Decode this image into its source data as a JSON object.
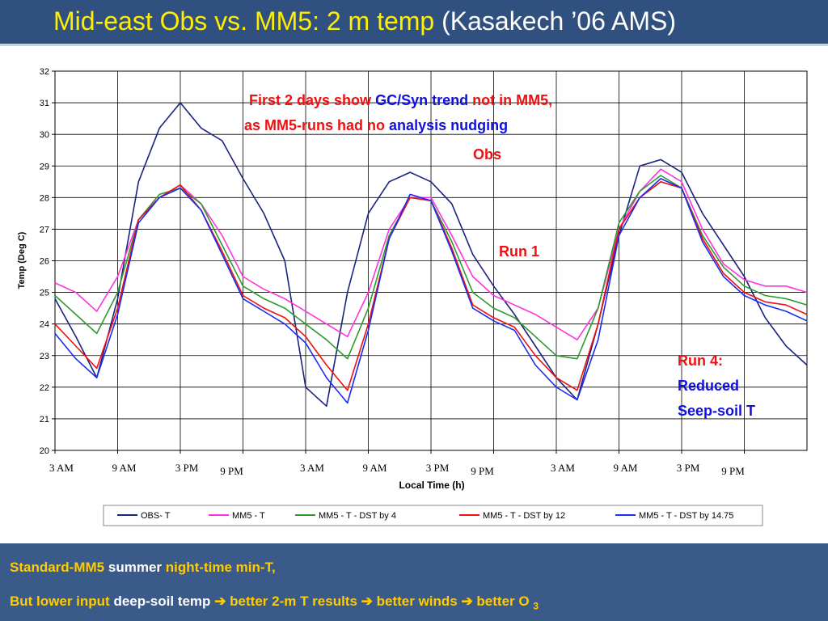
{
  "title": {
    "main": "Mid-east Obs vs. MM5: 2 m temp",
    "sub": "(Kasakech ’06 AMS)"
  },
  "chart_data": {
    "type": "line",
    "ylabel": "Temp (Deg C)",
    "xlabel": "Local Time (h)",
    "x": [
      0,
      2,
      4,
      6,
      8,
      10,
      12,
      14,
      16,
      18,
      20,
      22,
      24,
      26,
      28,
      30,
      32,
      34,
      36,
      38,
      40,
      42,
      44,
      46,
      48,
      50,
      52,
      54,
      56,
      58,
      60,
      62,
      64,
      66,
      68,
      70,
      72
    ],
    "xlim": [
      0,
      72
    ],
    "xticks": [
      {
        "value": 0,
        "label": "3 AM"
      },
      {
        "value": 6,
        "label": "9 AM"
      },
      {
        "value": 12,
        "label": "3 PM"
      },
      {
        "value": 18,
        "label": "9 PM"
      },
      {
        "value": 24,
        "label": "3 AM"
      },
      {
        "value": 30,
        "label": "9 AM"
      },
      {
        "value": 36,
        "label": "3 PM"
      },
      {
        "value": 42,
        "label": "9 PM"
      },
      {
        "value": 48,
        "label": "3 AM"
      },
      {
        "value": 54,
        "label": "9 AM"
      },
      {
        "value": 60,
        "label": "3 PM"
      },
      {
        "value": 66,
        "label": "9 PM"
      }
    ],
    "ylim": [
      20,
      32
    ],
    "yticks": [
      20,
      21,
      22,
      23,
      24,
      25,
      26,
      27,
      28,
      29,
      30,
      31,
      32
    ],
    "grid": true,
    "series": [
      {
        "name": "OBS- T",
        "color": "#1a237e",
        "values": [
          24.8,
          23.6,
          22.3,
          24.8,
          28.5,
          30.2,
          31.0,
          30.2,
          29.8,
          28.6,
          27.5,
          26.0,
          22.0,
          21.4,
          25.0,
          27.5,
          28.5,
          28.8,
          28.5,
          27.8,
          26.2,
          25.2,
          24.3,
          23.3,
          22.3,
          21.6,
          24.0,
          26.8,
          29.0,
          29.2,
          28.8,
          27.5,
          26.5,
          25.5,
          24.2,
          23.3,
          22.7
        ]
      },
      {
        "name": "MM5 - T",
        "color": "#ff33dd",
        "values": [
          25.3,
          25.0,
          24.4,
          25.5,
          27.3,
          28.0,
          28.4,
          27.8,
          26.8,
          25.5,
          25.1,
          24.8,
          24.4,
          24.0,
          23.6,
          25.0,
          27.0,
          28.0,
          28.0,
          26.8,
          25.5,
          24.9,
          24.6,
          24.3,
          23.9,
          23.5,
          24.5,
          27.0,
          28.2,
          28.9,
          28.5,
          27.0,
          25.9,
          25.4,
          25.2,
          25.2,
          25.0
        ]
      },
      {
        "name": "MM5 - T - DST by 4",
        "color": "#2e9a2e",
        "values": [
          24.9,
          24.3,
          23.7,
          25.0,
          27.3,
          28.1,
          28.3,
          27.8,
          26.5,
          25.2,
          24.8,
          24.5,
          24.0,
          23.5,
          22.9,
          24.5,
          26.8,
          28.0,
          27.9,
          26.6,
          25.0,
          24.5,
          24.2,
          23.6,
          23.0,
          22.9,
          24.5,
          27.2,
          28.2,
          28.7,
          28.3,
          26.8,
          25.8,
          25.2,
          24.9,
          24.8,
          24.6
        ]
      },
      {
        "name": "MM5 - T - DST by 12",
        "color": "#ee1111",
        "values": [
          24.0,
          23.3,
          22.6,
          24.5,
          27.3,
          28.0,
          28.4,
          27.6,
          26.3,
          24.9,
          24.5,
          24.2,
          23.6,
          22.7,
          21.9,
          24.0,
          26.7,
          28.0,
          27.9,
          26.4,
          24.6,
          24.2,
          23.9,
          23.0,
          22.3,
          21.9,
          24.0,
          27.0,
          28.0,
          28.5,
          28.3,
          26.7,
          25.6,
          25.0,
          24.7,
          24.6,
          24.3
        ]
      },
      {
        "name": "MM5 - T - DST by 14.75",
        "color": "#1c2cf0",
        "values": [
          23.7,
          22.9,
          22.3,
          24.3,
          27.2,
          28.0,
          28.3,
          27.6,
          26.2,
          24.8,
          24.4,
          24.0,
          23.4,
          22.3,
          21.5,
          23.8,
          26.7,
          28.1,
          27.9,
          26.3,
          24.5,
          24.1,
          23.8,
          22.7,
          22.0,
          21.6,
          23.5,
          26.8,
          28.0,
          28.6,
          28.3,
          26.6,
          25.5,
          24.9,
          24.6,
          24.4,
          24.1
        ]
      }
    ]
  },
  "annotations": [
    {
      "lines": [
        [
          {
            "text": "First 2 days show",
            "color": "#ee1111"
          },
          {
            "text": "GC/Syn trend",
            "color": "#1111dd"
          },
          {
            "text": "not in MM5,",
            "color": "#ee1111"
          }
        ],
        [
          {
            "text": "as MM5-runs had no",
            "color": "#ee1111"
          },
          {
            "text": "analysis nudging",
            "color": "#1111dd"
          }
        ]
      ]
    },
    {
      "lines": [
        [
          {
            "text": "Obs",
            "color": "#ee1111"
          }
        ]
      ]
    },
    {
      "lines": [
        [
          {
            "text": "Run 1",
            "color": "#ee1111"
          }
        ]
      ]
    },
    {
      "lines": [
        [
          {
            "text": "Run 4:",
            "color": "#ee1111"
          }
        ],
        [
          {
            "text": "Reduced",
            "color": "#1111dd"
          }
        ],
        [
          {
            "text": "Seep-soil T",
            "color": "#1111dd"
          }
        ]
      ]
    }
  ],
  "footer": {
    "lines": [
      [
        {
          "text": "Standard-MM5",
          "color": "#ffcc00"
        },
        {
          "text": "summer",
          "color": "#ffffff"
        },
        {
          "text": "night-time min-T,",
          "color": "#ffcc00"
        }
      ],
      [
        {
          "text": "But lower input",
          "color": "#ffcc00"
        },
        {
          "text": "deep-soil temp",
          "color": "#ffffff"
        },
        {
          "text": "➔ better 2-m T results ➔ better winds ➔ better O",
          "color": "#ffcc00"
        },
        {
          "text": "3",
          "color": "#ffcc00",
          "sub": true
        }
      ]
    ]
  }
}
